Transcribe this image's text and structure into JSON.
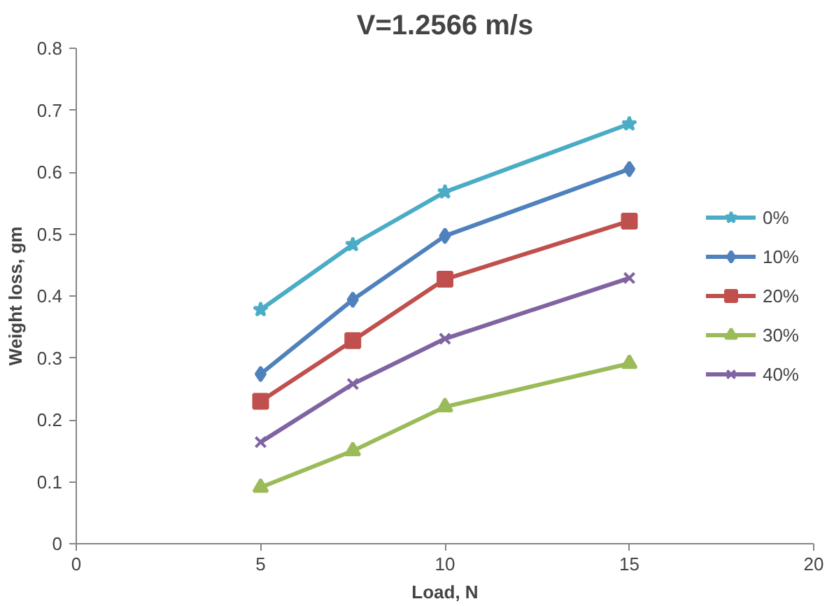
{
  "chart_data": {
    "type": "line",
    "title": "V=1.2566 m/s",
    "xlabel": "Load, N",
    "ylabel": "Weight loss, gm",
    "x": [
      5,
      7.5,
      10,
      15
    ],
    "series": [
      {
        "name": "0%",
        "color": "#4bacc6",
        "marker": "star",
        "values": [
          0.378,
          0.483,
          0.568,
          0.678
        ]
      },
      {
        "name": "10%",
        "color": "#4f81bd",
        "marker": "diamond",
        "values": [
          0.274,
          0.394,
          0.497,
          0.605
        ]
      },
      {
        "name": "20%",
        "color": "#c0504d",
        "marker": "square",
        "values": [
          0.23,
          0.328,
          0.427,
          0.521
        ]
      },
      {
        "name": "30%",
        "color": "#9bbb59",
        "marker": "triangle",
        "values": [
          0.091,
          0.15,
          0.221,
          0.291
        ]
      },
      {
        "name": "40%",
        "color": "#8064a2",
        "marker": "cross",
        "values": [
          0.164,
          0.258,
          0.331,
          0.429
        ]
      }
    ],
    "xlim": [
      0,
      20
    ],
    "xticks": [
      0,
      5,
      10,
      15,
      20
    ],
    "ylim": [
      0,
      0.8
    ],
    "yticks": [
      0,
      0.1,
      0.2,
      0.3,
      0.4,
      0.5,
      0.6,
      0.7,
      0.8
    ],
    "grid": false,
    "legend": "right",
    "line_style": "solid"
  }
}
